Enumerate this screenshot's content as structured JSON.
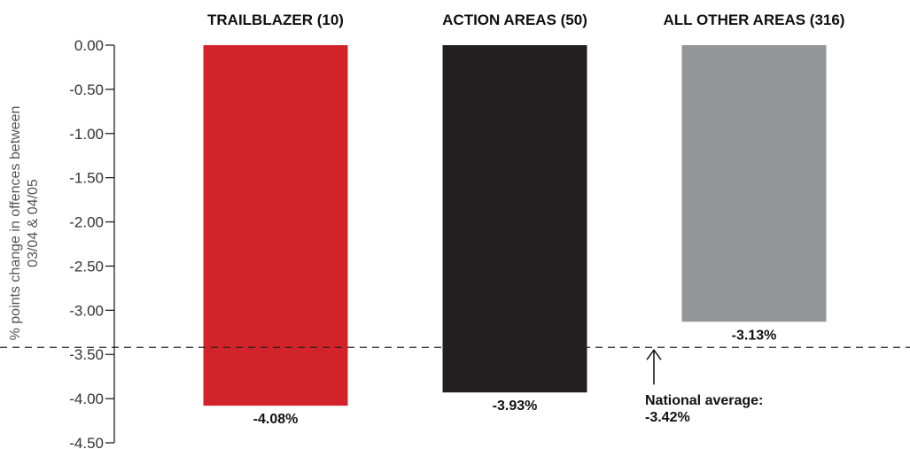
{
  "chart_data": {
    "type": "bar",
    "categories": [
      "TRAILBLAZER (10)",
      "ACTION AREAS (50)",
      "ALL OTHER AREAS (316)"
    ],
    "values": [
      -4.08,
      -3.93,
      -3.13
    ],
    "data_labels": [
      "-4.08%",
      "-3.93%",
      "-3.13%"
    ],
    "colors": [
      "#d2232a",
      "#231f20",
      "#939598"
    ],
    "ylabel": [
      "% points change in offences between",
      "03/04 & 04/05"
    ],
    "ylim": [
      -4.5,
      0
    ],
    "yticks": [
      "0.00",
      "-0.50",
      "-1.00",
      "-1.50",
      "-2.00",
      "-2.50",
      "-3.00",
      "-3.50",
      "-4.00",
      "-4.50"
    ],
    "reference_line": {
      "value": -3.42,
      "style": "dashed",
      "label": [
        "National average:",
        "-3.42%"
      ]
    },
    "grid": false,
    "legend": "none"
  }
}
